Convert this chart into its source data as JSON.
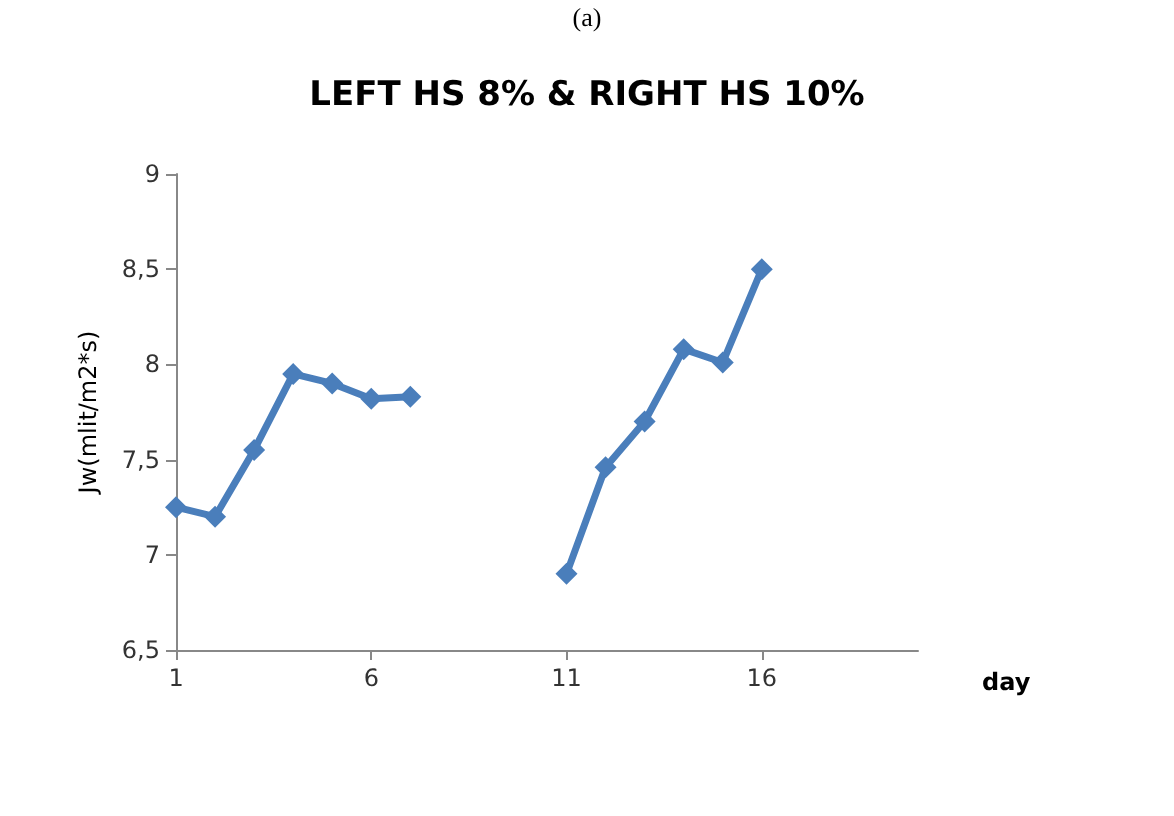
{
  "chart_data": {
    "type": "line",
    "title": "LEFT HS 8% & RIGHT HS 10%",
    "xlabel": "day",
    "ylabel": "Jw(mlit/m2*s)",
    "annotations": [
      "(a)"
    ],
    "series": [
      {
        "color": "#4a7ebb",
        "x": [
          1,
          2,
          3,
          4,
          5,
          6,
          7
        ],
        "values": [
          7.25,
          7.2,
          7.55,
          7.95,
          7.9,
          7.82,
          7.83
        ]
      },
      {
        "color": "#4a7ebb",
        "x": [
          11,
          12,
          13,
          14,
          15,
          16
        ],
        "values": [
          6.9,
          7.46,
          7.7,
          8.08,
          8.01,
          8.5
        ]
      }
    ],
    "xlim": [
      1,
      20
    ],
    "xticks": [
      1,
      6,
      11,
      16
    ],
    "ylim": [
      6.5,
      9
    ],
    "yticks": [
      {
        "value": 6.5,
        "label": "6,5"
      },
      7,
      {
        "value": 7.5,
        "label": "7,5"
      },
      8,
      {
        "value": 8.5,
        "label": "8,5"
      },
      9
    ],
    "grid": false,
    "marker": "diamond",
    "line_style": "solid"
  }
}
